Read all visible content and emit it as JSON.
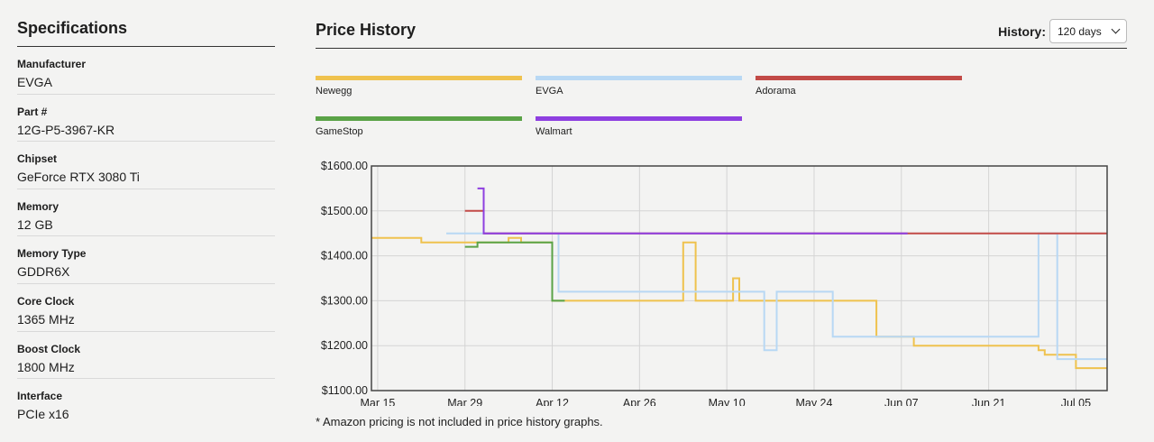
{
  "specs": {
    "title": "Specifications",
    "items": [
      {
        "label": "Manufacturer",
        "value": "EVGA"
      },
      {
        "label": "Part #",
        "value": "12G-P5-3967-KR"
      },
      {
        "label": "Chipset",
        "value": "GeForce RTX 3080 Ti"
      },
      {
        "label": "Memory",
        "value": "12 GB"
      },
      {
        "label": "Memory Type",
        "value": "GDDR6X"
      },
      {
        "label": "Core Clock",
        "value": "1365 MHz"
      },
      {
        "label": "Boost Clock",
        "value": "1800 MHz"
      },
      {
        "label": "Interface",
        "value": "PCIe x16"
      }
    ]
  },
  "history": {
    "title": "Price History",
    "control_label": "History:",
    "selected_range": "120 days",
    "footnote": "* Amazon pricing is not included in price history graphs."
  },
  "chart_data": {
    "type": "line",
    "x_tick_labels": [
      "Mar 15",
      "Mar 29",
      "Apr 12",
      "Apr 26",
      "May 10",
      "May 24",
      "Jun 07",
      "Jun 21",
      "Jul 05"
    ],
    "y_tick_labels": [
      "$1600.00",
      "$1500.00",
      "$1400.00",
      "$1300.00",
      "$1200.00",
      "$1100.00"
    ],
    "ylim": [
      1100,
      1600
    ],
    "x_range": [
      "Mar 14",
      "Jul 10"
    ],
    "grid": true,
    "legend_position": "top",
    "series": [
      {
        "name": "Newegg",
        "color": "#efc24e",
        "points": [
          [
            "Mar 14",
            1440
          ],
          [
            "Mar 22",
            1440
          ],
          [
            "Mar 22",
            1430
          ],
          [
            "Apr 05",
            1430
          ],
          [
            "Apr 05",
            1440
          ],
          [
            "Apr 07",
            1440
          ],
          [
            "Apr 07",
            1430
          ],
          [
            "Apr 12",
            1430
          ],
          [
            "Apr 12",
            1300
          ],
          [
            "May 03",
            1300
          ],
          [
            "May 03",
            1430
          ],
          [
            "May 05",
            1430
          ],
          [
            "May 05",
            1300
          ],
          [
            "May 11",
            1300
          ],
          [
            "May 11",
            1350
          ],
          [
            "May 12",
            1350
          ],
          [
            "May 12",
            1300
          ],
          [
            "Jun 03",
            1300
          ],
          [
            "Jun 03",
            1220
          ],
          [
            "Jun 09",
            1220
          ],
          [
            "Jun 09",
            1200
          ],
          [
            "Jun 29",
            1200
          ],
          [
            "Jun 29",
            1190
          ],
          [
            "Jun 30",
            1190
          ],
          [
            "Jun 30",
            1180
          ],
          [
            "Jul 05",
            1180
          ],
          [
            "Jul 05",
            1150
          ],
          [
            "Jul 10",
            1150
          ]
        ]
      },
      {
        "name": "EVGA",
        "color": "#b8d8f4",
        "points": [
          [
            "Mar 26",
            1450
          ],
          [
            "Apr 13",
            1450
          ],
          [
            "Apr 13",
            1320
          ],
          [
            "May 16",
            1320
          ],
          [
            "May 16",
            1190
          ],
          [
            "May 18",
            1190
          ],
          [
            "May 18",
            1320
          ],
          [
            "May 27",
            1320
          ],
          [
            "May 27",
            1220
          ],
          [
            "Jun 19",
            1220
          ],
          [
            "Jun 19",
            1220
          ],
          [
            "Jun 29",
            1220
          ],
          [
            "Jun 29",
            1450
          ],
          [
            "Jul 02",
            1450
          ],
          [
            "Jul 02",
            1170
          ],
          [
            "Jul 10",
            1170
          ]
        ]
      },
      {
        "name": "Adorama",
        "color": "#c24a47",
        "points": [
          [
            "Mar 29",
            1500
          ],
          [
            "Apr 01",
            1500
          ],
          [
            "Apr 01",
            1450
          ],
          [
            "Jul 10",
            1450
          ]
        ]
      },
      {
        "name": "GameStop",
        "color": "#5aa347",
        "points": [
          [
            "Mar 29",
            1420
          ],
          [
            "Mar 31",
            1420
          ],
          [
            "Mar 31",
            1430
          ],
          [
            "Apr 12",
            1430
          ],
          [
            "Apr 12",
            1300
          ],
          [
            "Apr 14",
            1300
          ]
        ]
      },
      {
        "name": "Walmart",
        "color": "#8e3fe0",
        "points": [
          [
            "Mar 31",
            1550
          ],
          [
            "Apr 01",
            1550
          ],
          [
            "Apr 01",
            1450
          ],
          [
            "Jun 08",
            1450
          ]
        ]
      }
    ]
  }
}
